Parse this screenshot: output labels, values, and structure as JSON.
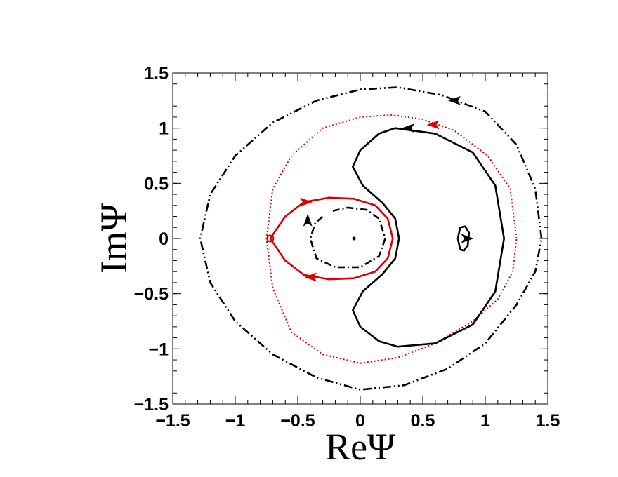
{
  "chart_data": {
    "type": "line",
    "xlabel": "ReΨ",
    "ylabel": "ImΨ",
    "xlim": [
      -1.5,
      1.5
    ],
    "ylim": [
      -1.5,
      1.5
    ],
    "x_ticks": [
      "−1.5",
      "−1",
      "−0.5",
      "0",
      "0.5",
      "1",
      "1.5"
    ],
    "y_ticks": [
      "1.5",
      "1",
      "0.5",
      "0",
      "−0.5",
      "−1",
      "−1.5"
    ],
    "grid": false,
    "series": [
      {
        "style": "dash-dot-dot",
        "color": "#000000",
        "points": [
          [
            1.45,
            0.0
          ],
          [
            1.4,
            0.45
          ],
          [
            1.25,
            0.85
          ],
          [
            1.0,
            1.15
          ],
          [
            0.65,
            1.3
          ],
          [
            0.3,
            1.37
          ],
          [
            0.0,
            1.35
          ],
          [
            -0.35,
            1.25
          ],
          [
            -0.7,
            1.05
          ],
          [
            -1.0,
            0.75
          ],
          [
            -1.2,
            0.4
          ],
          [
            -1.28,
            0.0
          ],
          [
            -1.2,
            -0.4
          ],
          [
            -1.0,
            -0.75
          ],
          [
            -0.7,
            -1.05
          ],
          [
            -0.35,
            -1.26
          ],
          [
            0.0,
            -1.37
          ],
          [
            0.35,
            -1.33
          ],
          [
            0.7,
            -1.18
          ],
          [
            1.0,
            -0.95
          ],
          [
            1.25,
            -0.6
          ],
          [
            1.4,
            -0.3
          ],
          [
            1.45,
            0.0
          ]
        ],
        "arrows": [
          {
            "x": 0.75,
            "y": 1.25,
            "dir": "left"
          }
        ]
      },
      {
        "style": "dotted",
        "color": "#dd0000",
        "points": [
          [
            1.25,
            0.0
          ],
          [
            1.2,
            0.45
          ],
          [
            1.02,
            0.75
          ],
          [
            0.75,
            0.98
          ],
          [
            0.5,
            1.08
          ],
          [
            0.25,
            1.12
          ],
          [
            0.0,
            1.1
          ],
          [
            -0.3,
            1.0
          ],
          [
            -0.55,
            0.75
          ],
          [
            -0.7,
            0.45
          ],
          [
            -0.75,
            0.0
          ],
          [
            -0.7,
            -0.45
          ],
          [
            -0.55,
            -0.85
          ],
          [
            -0.3,
            -1.05
          ],
          [
            0.0,
            -1.13
          ],
          [
            0.3,
            -1.08
          ],
          [
            0.6,
            -0.95
          ],
          [
            0.9,
            -0.75
          ],
          [
            1.1,
            -0.55
          ],
          [
            1.22,
            -0.3
          ],
          [
            1.25,
            0.0
          ]
        ],
        "arrows": [
          {
            "x": 0.58,
            "y": 1.03,
            "dir": "left"
          }
        ]
      },
      {
        "style": "solid",
        "color": "#000000",
        "points": [
          [
            0.28,
            1.0
          ],
          [
            0.15,
            0.95
          ],
          [
            0.0,
            0.8
          ],
          [
            -0.06,
            0.65
          ],
          [
            0.02,
            0.48
          ],
          [
            0.18,
            0.32
          ],
          [
            0.28,
            0.18
          ],
          [
            0.31,
            0.0
          ],
          [
            0.28,
            -0.18
          ],
          [
            0.18,
            -0.32
          ],
          [
            0.02,
            -0.48
          ],
          [
            -0.06,
            -0.65
          ],
          [
            0.0,
            -0.8
          ],
          [
            0.15,
            -0.93
          ],
          [
            0.3,
            -0.98
          ],
          [
            0.6,
            -0.95
          ],
          [
            0.9,
            -0.78
          ],
          [
            1.08,
            -0.48
          ],
          [
            1.15,
            0.0
          ],
          [
            1.08,
            0.48
          ],
          [
            0.9,
            0.78
          ],
          [
            0.6,
            0.95
          ],
          [
            0.28,
            1.0
          ]
        ],
        "arrows": [
          {
            "x": 0.38,
            "y": 1.0,
            "dir": "left"
          }
        ]
      },
      {
        "style": "solid",
        "color": "#dd0000",
        "points": [
          [
            -0.72,
            0.0
          ],
          [
            -0.6,
            0.2
          ],
          [
            -0.45,
            0.33
          ],
          [
            -0.25,
            0.37
          ],
          [
            -0.05,
            0.36
          ],
          [
            0.12,
            0.3
          ],
          [
            0.22,
            0.18
          ],
          [
            0.26,
            0.0
          ],
          [
            0.22,
            -0.18
          ],
          [
            0.12,
            -0.3
          ],
          [
            -0.05,
            -0.36
          ],
          [
            -0.25,
            -0.37
          ],
          [
            -0.45,
            -0.33
          ],
          [
            -0.6,
            -0.2
          ],
          [
            -0.72,
            0.0
          ]
        ],
        "arrows": [
          {
            "x": -0.43,
            "y": 0.33,
            "dir": "right"
          },
          {
            "x": -0.4,
            "y": -0.35,
            "dir": "left"
          }
        ]
      },
      {
        "style": "dash-dot",
        "color": "#000000",
        "points": [
          [
            -0.22,
            0.25
          ],
          [
            -0.1,
            0.28
          ],
          [
            0.05,
            0.26
          ],
          [
            0.15,
            0.18
          ],
          [
            0.2,
            0.0
          ],
          [
            0.15,
            -0.16
          ],
          [
            0.0,
            -0.26
          ],
          [
            -0.2,
            -0.26
          ],
          [
            -0.35,
            -0.18
          ],
          [
            -0.4,
            0.0
          ],
          [
            -0.36,
            0.14
          ],
          [
            -0.3,
            0.2
          ]
        ],
        "arrows": [
          {
            "x": -0.42,
            "y": 0.17,
            "dir": "up"
          }
        ]
      },
      {
        "style": "solid",
        "color": "#000000",
        "points": [
          [
            0.78,
            0.0
          ],
          [
            0.8,
            0.1
          ],
          [
            0.84,
            0.11
          ],
          [
            0.87,
            0.05
          ],
          [
            0.86,
            -0.06
          ],
          [
            0.83,
            -0.11
          ],
          [
            0.8,
            -0.1
          ],
          [
            0.78,
            0.0
          ]
        ],
        "arrows": [
          {
            "x": 0.86,
            "y": 0.0,
            "dir": "right"
          }
        ]
      }
    ],
    "markers": [
      {
        "type": "open-circle",
        "color": "#dd0000",
        "x": -0.72,
        "y": 0.0
      },
      {
        "type": "dot",
        "color": "#000000",
        "x": -0.05,
        "y": 0.0
      }
    ]
  }
}
